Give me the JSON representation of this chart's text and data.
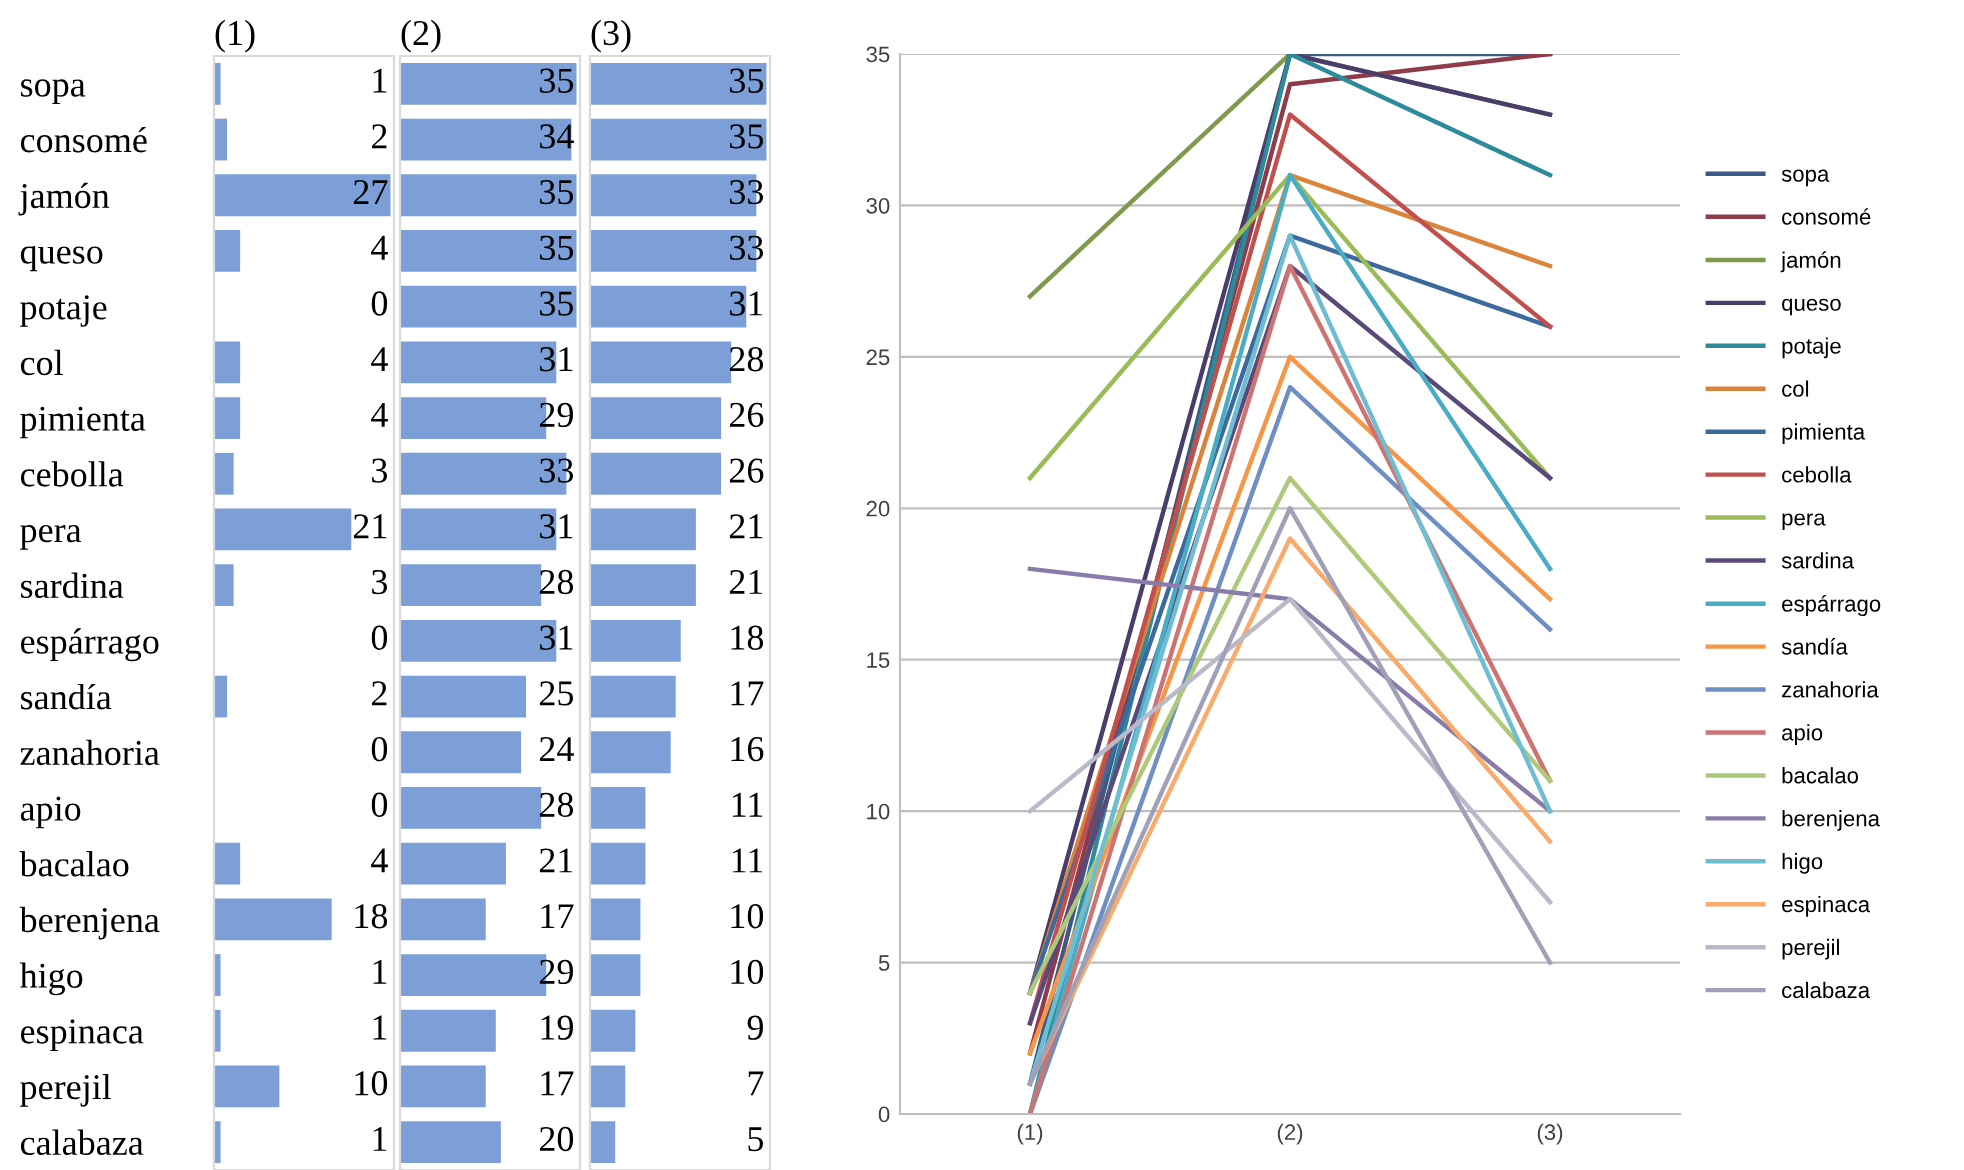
{
  "chart_data": [
    {
      "type": "bar",
      "orientation": "horizontal",
      "title": "(1)",
      "categories": [
        "sopa",
        "consomé",
        "jamón",
        "queso",
        "potaje",
        "col",
        "pimienta",
        "cebolla",
        "pera",
        "sardina",
        "espárrago",
        "sandía",
        "zanahoria",
        "apio",
        "bacalao",
        "berenjena",
        "higo",
        "espinaca",
        "perejil",
        "calabaza"
      ],
      "values": [
        1,
        2,
        27,
        4,
        0,
        4,
        4,
        3,
        21,
        3,
        0,
        2,
        0,
        0,
        4,
        18,
        1,
        1,
        10,
        1
      ],
      "color": "#7b9fd6",
      "data_labels": true,
      "tick_labels": "y"
    },
    {
      "type": "bar",
      "orientation": "horizontal",
      "title": "(2)",
      "categories": [
        null,
        null,
        null,
        null,
        null,
        null,
        null,
        null,
        null,
        null,
        null,
        null,
        null,
        null,
        null,
        null,
        null,
        null,
        null,
        null
      ],
      "values": [
        35,
        34,
        35,
        35,
        35,
        31,
        29,
        33,
        31,
        28,
        31,
        25,
        24,
        28,
        21,
        17,
        29,
        19,
        17,
        20
      ],
      "color": "#7b9fd6",
      "data_labels": true
    },
    {
      "type": "bar",
      "orientation": "horizontal",
      "title": "(3)",
      "categories": [
        null,
        null,
        null,
        null,
        null,
        null,
        null,
        null,
        null,
        null,
        null,
        null,
        null,
        null,
        null,
        null,
        null,
        null,
        null,
        null
      ],
      "values": [
        35,
        35,
        33,
        33,
        31,
        28,
        26,
        26,
        21,
        21,
        18,
        17,
        16,
        11,
        11,
        10,
        10,
        9,
        7,
        5
      ],
      "color": "#7b9fd6",
      "data_labels": true
    },
    {
      "type": "line",
      "categories": [
        "(1)",
        "(2)",
        "(3)"
      ],
      "ylim": [
        0,
        35
      ],
      "yticks": [
        0,
        5,
        10,
        15,
        20,
        25,
        30,
        35
      ],
      "grid": "y",
      "legend": "right",
      "series": [
        {
          "name": "sopa",
          "color": "#3b5a86",
          "values": [
            1,
            35,
            35
          ]
        },
        {
          "name": "consomé",
          "color": "#8e3b4a",
          "values": [
            2,
            34,
            35
          ]
        },
        {
          "name": "jamón",
          "color": "#7f9a4a",
          "values": [
            27,
            35,
            33
          ]
        },
        {
          "name": "queso",
          "color": "#4a3d6b",
          "values": [
            4,
            35,
            33
          ]
        },
        {
          "name": "potaje",
          "color": "#2d8a9a",
          "values": [
            0,
            35,
            31
          ]
        },
        {
          "name": "col",
          "color": "#d9843a",
          "values": [
            4,
            31,
            28
          ]
        },
        {
          "name": "pimienta",
          "color": "#3c6a9c",
          "values": [
            4,
            29,
            26
          ]
        },
        {
          "name": "cebolla",
          "color": "#c0504d",
          "values": [
            3,
            33,
            26
          ]
        },
        {
          "name": "pera",
          "color": "#9bbb59",
          "values": [
            21,
            31,
            21
          ]
        },
        {
          "name": "sardina",
          "color": "#5a4a7a",
          "values": [
            3,
            28,
            21
          ]
        },
        {
          "name": "espárrago",
          "color": "#4bacc6",
          "values": [
            0,
            31,
            18
          ]
        },
        {
          "name": "sandía",
          "color": "#f79646",
          "values": [
            2,
            25,
            17
          ]
        },
        {
          "name": "zanahoria",
          "color": "#6f8fc4",
          "values": [
            0,
            24,
            16
          ]
        },
        {
          "name": "apio",
          "color": "#cd7371",
          "values": [
            0,
            28,
            11
          ]
        },
        {
          "name": "bacalao",
          "color": "#afc97a",
          "values": [
            4,
            21,
            11
          ]
        },
        {
          "name": "berenjena",
          "color": "#8a7ca8",
          "values": [
            18,
            17,
            10
          ]
        },
        {
          "name": "higo",
          "color": "#6fbdd3",
          "values": [
            1,
            29,
            10
          ]
        },
        {
          "name": "espinaca",
          "color": "#f9ab6b",
          "values": [
            1,
            19,
            9
          ]
        },
        {
          "name": "perejil",
          "color": "#b9b9c9",
          "values": [
            10,
            17,
            7
          ]
        },
        {
          "name": "calabaza",
          "color": "#a0a0b8",
          "values": [
            1,
            20,
            5
          ]
        }
      ]
    }
  ]
}
